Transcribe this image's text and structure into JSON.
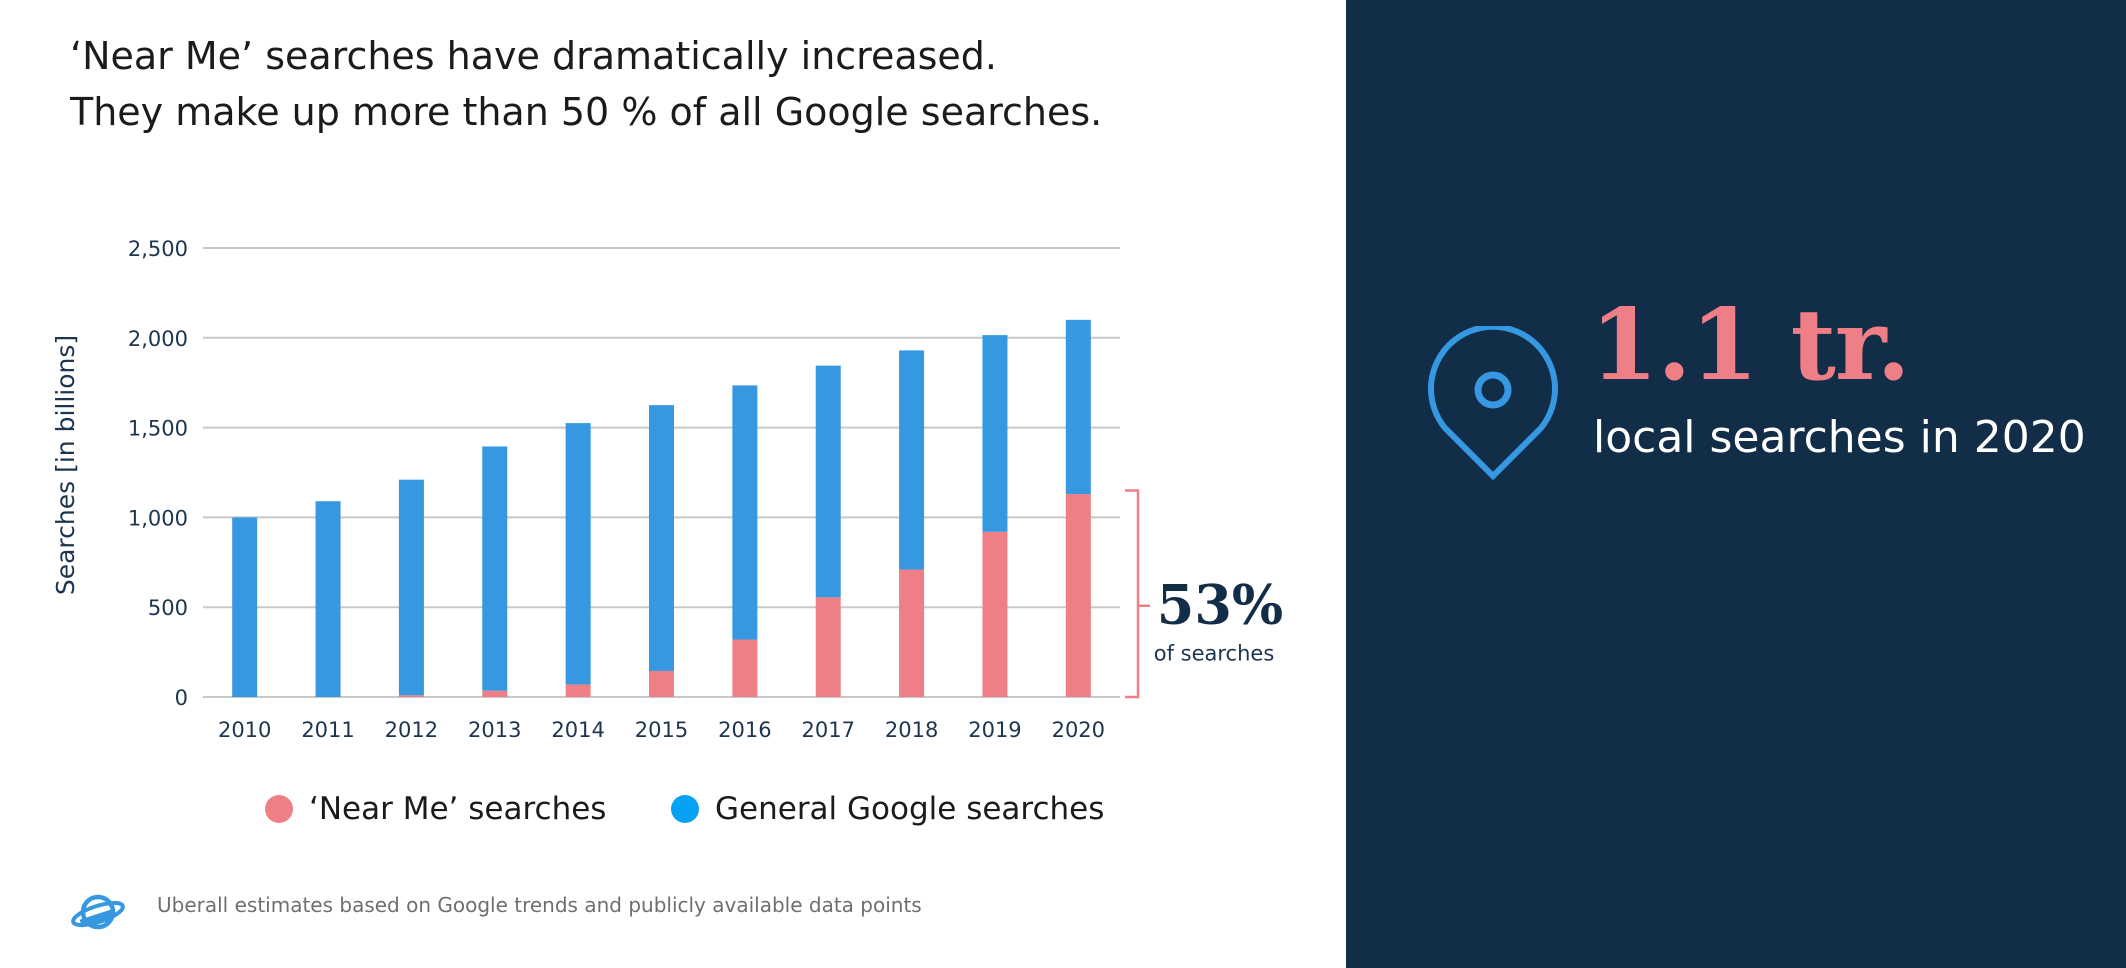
{
  "headline": {
    "line1": "‘Near Me’ searches have dramatically increased.",
    "line2": "They make up more than 50 % of all Google searches."
  },
  "chart_data": {
    "type": "bar",
    "stacked": true,
    "categories": [
      "2010",
      "2011",
      "2012",
      "2013",
      "2014",
      "2015",
      "2016",
      "2017",
      "2018",
      "2019",
      "2020"
    ],
    "series": [
      {
        "name": "‘Near Me’ searches",
        "color": "#ef7f86",
        "values": [
          0,
          0,
          10,
          35,
          70,
          145,
          320,
          555,
          710,
          920,
          1130
        ]
      },
      {
        "name": "General Google searches",
        "color": "#3598e0",
        "values": [
          1000,
          1090,
          1200,
          1360,
          1455,
          1480,
          1415,
          1290,
          1220,
          1095,
          970
        ]
      }
    ],
    "title": "",
    "xlabel": "",
    "ylabel": "Searches [in billions]",
    "ylim": [
      0,
      2500
    ],
    "yticks": [
      0,
      500,
      1000,
      1500,
      2000,
      2500
    ],
    "ytick_labels": [
      "0",
      "500",
      "1,000",
      "1,500",
      "2,000",
      "2,500"
    ],
    "grid": true,
    "legend_position": "bottom",
    "annotation": {
      "value": "53%",
      "label": "of searches",
      "range": [
        0,
        1150
      ],
      "color": "#ef7f86"
    }
  },
  "legend": {
    "near_me_label": "‘Near Me’ searches",
    "near_me_color": "#ef7f86",
    "general_label": "General Google searches",
    "general_color": "#08a2f5"
  },
  "footnote": "Uberall estimates based on Google trends and publicly available data points",
  "logo_icon": "planet-logo-icon",
  "stat": {
    "icon": "location-pin-icon",
    "value": "1.1 tr.",
    "label": "local searches in 2020"
  }
}
